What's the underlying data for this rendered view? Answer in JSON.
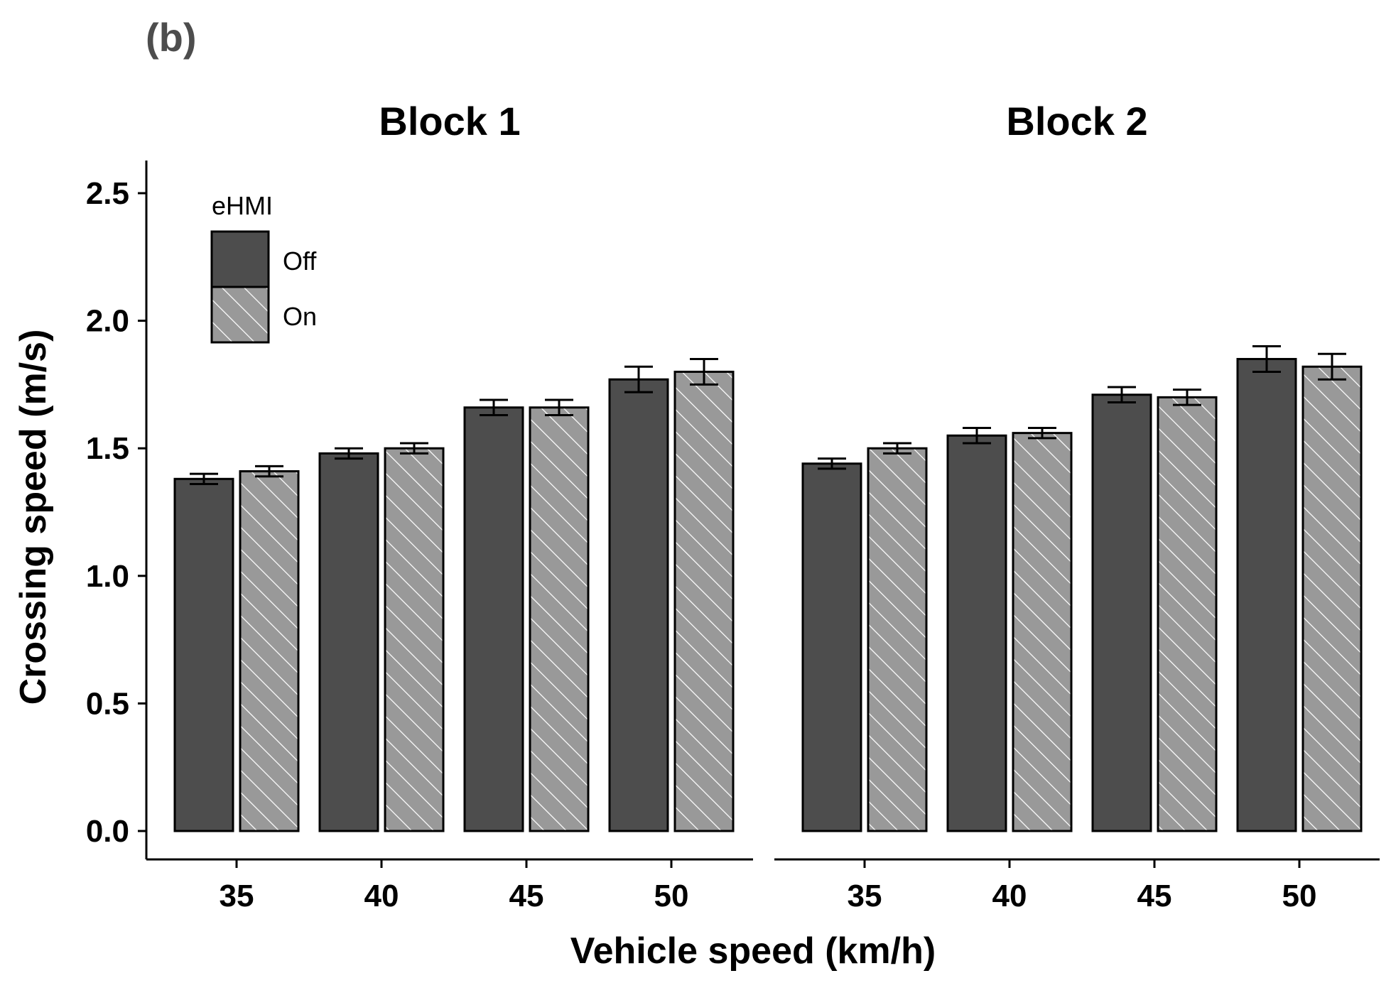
{
  "panel_label": "(b)",
  "chart_data": {
    "type": "bar",
    "facets": [
      {
        "title": "Block 1",
        "categories": [
          "35",
          "40",
          "45",
          "50"
        ],
        "series": [
          {
            "name": "Off",
            "values": [
              1.38,
              1.48,
              1.66,
              1.77
            ],
            "errors": [
              0.02,
              0.02,
              0.03,
              0.05
            ]
          },
          {
            "name": "On",
            "values": [
              1.41,
              1.5,
              1.66,
              1.8
            ],
            "errors": [
              0.02,
              0.02,
              0.03,
              0.05
            ]
          }
        ]
      },
      {
        "title": "Block 2",
        "categories": [
          "35",
          "40",
          "45",
          "50"
        ],
        "series": [
          {
            "name": "Off",
            "values": [
              1.44,
              1.55,
              1.71,
              1.85
            ],
            "errors": [
              0.02,
              0.03,
              0.03,
              0.05
            ]
          },
          {
            "name": "On",
            "values": [
              1.5,
              1.56,
              1.7,
              1.82
            ],
            "errors": [
              0.02,
              0.02,
              0.03,
              0.05
            ]
          }
        ]
      }
    ],
    "xlabel": "Vehicle speed (km/h)",
    "ylabel": "Crossing speed (m/s)",
    "ylim": [
      0,
      2.6
    ],
    "yticks": [
      "0.0",
      "0.5",
      "1.0",
      "1.5",
      "2.0",
      "2.5"
    ],
    "legend": {
      "title": "eHMI",
      "position": "top-left",
      "entries": [
        {
          "name": "Off",
          "fill": "#4d4d4d",
          "pattern": "solid"
        },
        {
          "name": "On",
          "fill": "#999999",
          "pattern": "hatched"
        }
      ]
    },
    "grid": false
  }
}
